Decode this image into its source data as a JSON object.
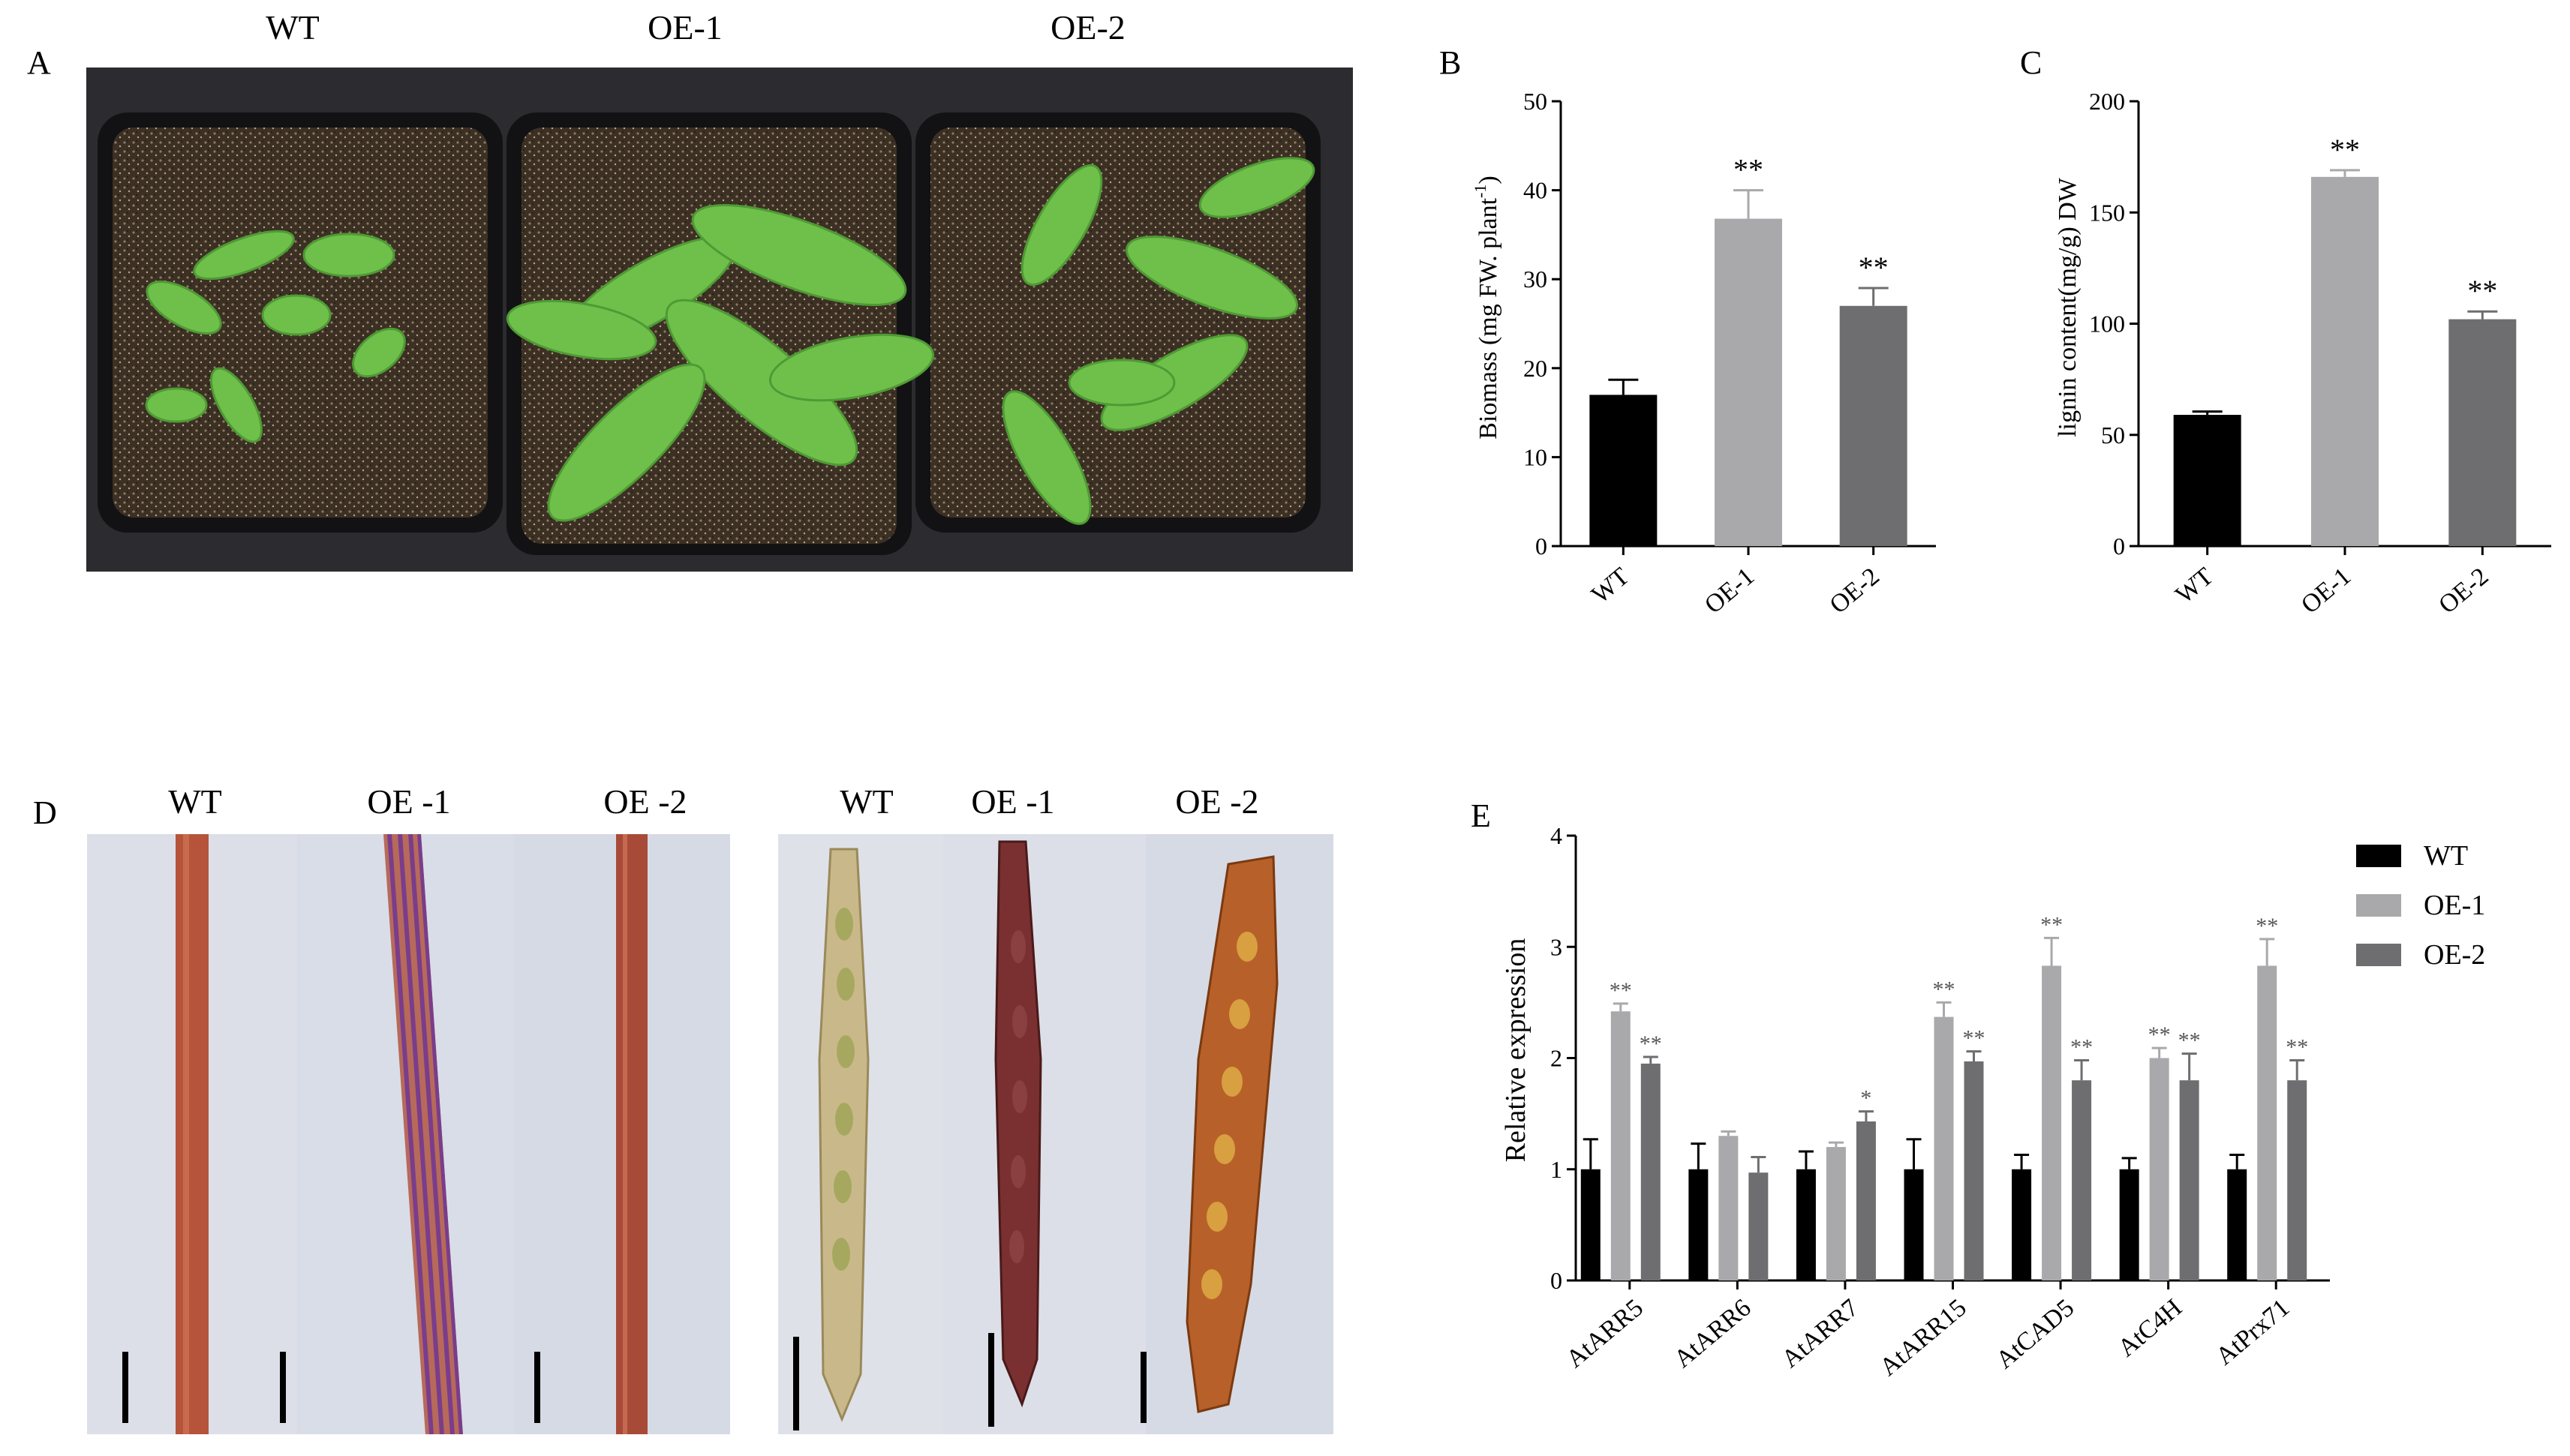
{
  "panels": {
    "A": {
      "label": "A",
      "col_labels": [
        "WT",
        "OE-1",
        "OE-2"
      ]
    },
    "B": {
      "label": "B"
    },
    "C": {
      "label": "C"
    },
    "D": {
      "label": "D",
      "left_labels": [
        "WT",
        "OE -1",
        "OE -2"
      ],
      "right_labels": [
        "WT",
        "OE -1",
        "OE -2"
      ]
    },
    "E": {
      "label": "E"
    }
  },
  "colors": {
    "WT": "#000000",
    "OE-1": "#a9a9ab",
    "OE-2": "#6e6e70",
    "soil": "#3a2e22",
    "leaf": "#6fc04a",
    "stem_wt": "#b5543a",
    "stem_oe1": "#9a4a6a",
    "stem_oe2": "#a84a38",
    "bg_photo": "#d7dbe6"
  },
  "chart_data": [
    {
      "id": "B",
      "type": "bar",
      "categories": [
        "WT",
        "OE-1",
        "OE-2"
      ],
      "values": [
        17,
        36.8,
        27
      ],
      "errors": [
        1.7,
        3.2,
        2.0
      ],
      "significance": [
        "",
        "**",
        "**"
      ],
      "ylabel_main": "Biomass (mg FW. plant",
      "ylabel_sup": "-1",
      "ylabel_end": ")",
      "ylim": [
        0,
        50
      ],
      "yticks": [
        "0",
        "10",
        "20",
        "30",
        "40",
        "50"
      ]
    },
    {
      "id": "C",
      "type": "bar",
      "categories": [
        "WT",
        "OE-1",
        "OE-2"
      ],
      "values": [
        59,
        166,
        102
      ],
      "errors": [
        1.5,
        3,
        3.5
      ],
      "significance": [
        "",
        "**",
        "**"
      ],
      "ylabel": "lignin content(mg/g) DW",
      "ylim": [
        0,
        200
      ],
      "yticks": [
        "0",
        "50",
        "100",
        "150",
        "200"
      ]
    },
    {
      "id": "E",
      "type": "bar",
      "categories": [
        "AtARR5",
        "AtARR6",
        "AtARR7",
        "AtARR15",
        "AtCAD5",
        "AtC4H",
        "AtPrx71"
      ],
      "series": [
        {
          "name": "WT",
          "values": [
            1.0,
            1.0,
            1.0,
            1.0,
            1.0,
            1.0,
            1.0
          ],
          "errors": [
            0.27,
            0.23,
            0.16,
            0.27,
            0.13,
            0.1,
            0.13
          ],
          "significance": [
            "",
            "",
            "",
            "",
            "",
            "",
            ""
          ]
        },
        {
          "name": "OE-1",
          "values": [
            2.42,
            1.3,
            1.2,
            2.37,
            2.83,
            2.0,
            2.83
          ],
          "errors": [
            0.07,
            0.04,
            0.04,
            0.13,
            0.25,
            0.09,
            0.24
          ],
          "significance": [
            "**",
            "",
            "",
            "**",
            "**",
            "**",
            "**"
          ]
        },
        {
          "name": "OE-2",
          "values": [
            1.95,
            0.97,
            1.43,
            1.97,
            1.8,
            1.8,
            1.8
          ],
          "errors": [
            0.06,
            0.14,
            0.09,
            0.09,
            0.18,
            0.24,
            0.18
          ],
          "significance": [
            "**",
            "",
            "*",
            "**",
            "**",
            "**",
            "**"
          ]
        }
      ],
      "ylabel": "Relative expression",
      "ylim": [
        0,
        4
      ],
      "yticks": [
        "0",
        "1",
        "2",
        "3",
        "4"
      ]
    }
  ]
}
